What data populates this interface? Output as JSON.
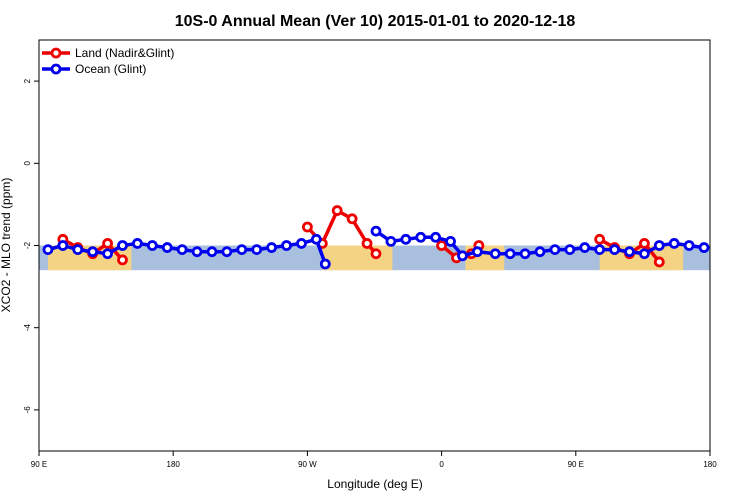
{
  "chart_data": {
    "type": "line",
    "title": "10S-0 Annual Mean (Ver 10)   2015-01-01 to 2020-12-18",
    "xlabel": "Longitude (deg E)",
    "ylabel": "XCO2 - MLO trend (ppm)",
    "x_ticks": [
      "90 E",
      "180",
      "90 W",
      "0",
      "90 E",
      "180"
    ],
    "y_ticks": [
      "2",
      "0",
      "-2",
      "-4",
      "-6"
    ],
    "xlim": [
      90,
      540
    ],
    "ylim": [
      -7,
      3
    ],
    "grid": false,
    "legend_position": "top-left",
    "series": [
      {
        "name": "Land (Nadir&Glint)",
        "color": "#ee0000",
        "segments": [
          [
            [
              106,
              -1.85
            ],
            [
              116,
              -2.05
            ],
            [
              126,
              -2.2
            ],
            [
              136,
              -1.95
            ],
            [
              146,
              -2.35
            ]
          ],
          [
            [
              270,
              -1.55
            ],
            [
              280,
              -1.95
            ],
            [
              290,
              -1.15
            ],
            [
              300,
              -1.35
            ],
            [
              310,
              -1.95
            ],
            [
              316,
              -2.2
            ]
          ],
          [
            [
              360,
              -2.0
            ],
            [
              370,
              -2.3
            ],
            [
              380,
              -2.2
            ],
            [
              385,
              -2.0
            ]
          ],
          [
            [
              466,
              -1.85
            ],
            [
              476,
              -2.05
            ],
            [
              486,
              -2.2
            ],
            [
              496,
              -1.95
            ],
            [
              506,
              -2.4
            ]
          ]
        ]
      },
      {
        "name": "Ocean (Glint)",
        "color": "#0000ee",
        "segments": [
          [
            [
              96,
              -2.1
            ],
            [
              106,
              -2.0
            ],
            [
              116,
              -2.1
            ],
            [
              126,
              -2.15
            ],
            [
              136,
              -2.2
            ],
            [
              146,
              -2.0
            ],
            [
              156,
              -1.95
            ],
            [
              166,
              -2.0
            ],
            [
              176,
              -2.05
            ],
            [
              186,
              -2.1
            ],
            [
              196,
              -2.15
            ],
            [
              206,
              -2.15
            ],
            [
              216,
              -2.15
            ],
            [
              226,
              -2.1
            ],
            [
              236,
              -2.1
            ],
            [
              246,
              -2.05
            ],
            [
              256,
              -2.0
            ],
            [
              266,
              -1.95
            ],
            [
              276,
              -1.85
            ],
            [
              282,
              -2.45
            ]
          ],
          [
            [
              316,
              -1.65
            ],
            [
              326,
              -1.9
            ],
            [
              336,
              -1.85
            ],
            [
              346,
              -1.8
            ],
            [
              356,
              -1.8
            ],
            [
              366,
              -1.9
            ],
            [
              374,
              -2.25
            ],
            [
              384,
              -2.15
            ],
            [
              396,
              -2.2
            ],
            [
              406,
              -2.2
            ],
            [
              416,
              -2.2
            ],
            [
              426,
              -2.15
            ],
            [
              436,
              -2.1
            ],
            [
              446,
              -2.1
            ],
            [
              456,
              -2.05
            ],
            [
              466,
              -2.1
            ],
            [
              476,
              -2.1
            ],
            [
              486,
              -2.15
            ],
            [
              496,
              -2.2
            ],
            [
              506,
              -2.0
            ],
            [
              516,
              -1.95
            ],
            [
              526,
              -2.0
            ],
            [
              536,
              -2.05
            ]
          ]
        ]
      }
    ],
    "band": {
      "y_range": [
        -2.6,
        -2.0
      ],
      "ocean_color": "#a8bfde",
      "land_color": "#fcd67a",
      "land_ranges": [
        [
          96,
          152
        ],
        [
          280,
          327
        ],
        [
          376,
          402
        ],
        [
          466,
          522
        ]
      ]
    }
  }
}
